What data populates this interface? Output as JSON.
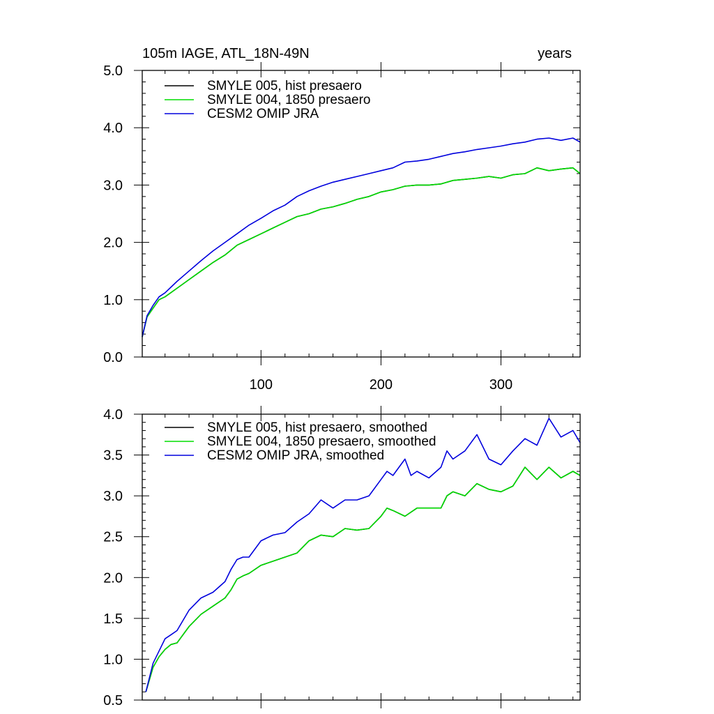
{
  "chart_data": [
    {
      "type": "line",
      "title_left": "105m IAGE, ATL_18N-49N",
      "title_right": "years",
      "xlabel": "",
      "ylabel": "",
      "xlim": [
        1,
        366
      ],
      "ylim": [
        0.0,
        5.0
      ],
      "yticks": [
        0.0,
        1.0,
        2.0,
        3.0,
        4.0,
        5.0
      ],
      "yticklabels": [
        "0.0",
        "1.0",
        "2.0",
        "3.0",
        "4.0",
        "5.0"
      ],
      "xticks": [
        100,
        200,
        300
      ],
      "xticklabels": [
        "100",
        "200",
        "300"
      ],
      "legend_position": "top-left",
      "series": [
        {
          "name": "SMYLE 005, hist presaero",
          "color": "#000000",
          "x": [
            1,
            5,
            10,
            15,
            20,
            30,
            40,
            50,
            60,
            70,
            80,
            90,
            100,
            110,
            120,
            130,
            140,
            150,
            160,
            170,
            180,
            190,
            200,
            210,
            220,
            230,
            240,
            250,
            260,
            270,
            280,
            290,
            300,
            310,
            320,
            330,
            340,
            350,
            360,
            366
          ],
          "y": [
            0.35,
            0.7,
            0.85,
            1.0,
            1.05,
            1.2,
            1.35,
            1.5,
            1.65,
            1.78,
            1.95,
            2.05,
            2.15,
            2.25,
            2.35,
            2.45,
            2.5,
            2.58,
            2.62,
            2.68,
            2.75,
            2.8,
            2.88,
            2.92,
            2.98,
            3.0,
            3.0,
            3.02,
            3.08,
            3.1,
            3.12,
            3.15,
            3.12,
            3.18,
            3.2,
            3.3,
            3.25,
            3.28,
            3.3,
            3.2
          ]
        },
        {
          "name": "SMYLE 004, 1850 presaero",
          "color": "#00dd00",
          "x": [
            1,
            5,
            10,
            15,
            20,
            30,
            40,
            50,
            60,
            70,
            80,
            90,
            100,
            110,
            120,
            130,
            140,
            150,
            160,
            170,
            180,
            190,
            200,
            210,
            220,
            230,
            240,
            250,
            260,
            270,
            280,
            290,
            300,
            310,
            320,
            330,
            340,
            350,
            360,
            366
          ],
          "y": [
            0.35,
            0.7,
            0.85,
            1.0,
            1.05,
            1.2,
            1.35,
            1.5,
            1.65,
            1.78,
            1.95,
            2.05,
            2.15,
            2.25,
            2.35,
            2.45,
            2.5,
            2.58,
            2.62,
            2.68,
            2.75,
            2.8,
            2.88,
            2.92,
            2.98,
            3.0,
            3.0,
            3.02,
            3.08,
            3.1,
            3.12,
            3.15,
            3.12,
            3.18,
            3.2,
            3.3,
            3.25,
            3.28,
            3.3,
            3.2
          ]
        },
        {
          "name": "CESM2 OMIP JRA",
          "color": "#0000dd",
          "x": [
            1,
            5,
            10,
            15,
            20,
            30,
            40,
            50,
            60,
            70,
            80,
            90,
            100,
            110,
            120,
            130,
            140,
            150,
            160,
            170,
            180,
            190,
            200,
            210,
            220,
            230,
            240,
            250,
            260,
            270,
            280,
            290,
            300,
            310,
            320,
            330,
            340,
            350,
            360,
            366
          ],
          "y": [
            0.35,
            0.72,
            0.9,
            1.05,
            1.12,
            1.32,
            1.5,
            1.68,
            1.85,
            2.0,
            2.15,
            2.3,
            2.42,
            2.55,
            2.65,
            2.8,
            2.9,
            2.98,
            3.05,
            3.1,
            3.15,
            3.2,
            3.25,
            3.3,
            3.4,
            3.42,
            3.45,
            3.5,
            3.55,
            3.58,
            3.62,
            3.65,
            3.68,
            3.72,
            3.75,
            3.8,
            3.82,
            3.78,
            3.82,
            3.75
          ]
        }
      ]
    },
    {
      "type": "line",
      "xlim": [
        1,
        366
      ],
      "ylim": [
        0.5,
        4.0
      ],
      "yticks": [
        0.5,
        1.0,
        1.5,
        2.0,
        2.5,
        3.0,
        3.5,
        4.0
      ],
      "yticklabels": [
        "0.5",
        "1.0",
        "1.5",
        "2.0",
        "2.5",
        "3.0",
        "3.5",
        "4.0"
      ],
      "xticks": [
        100,
        200,
        300
      ],
      "legend_position": "top-left",
      "series": [
        {
          "name": "SMYLE 005, hist presaero, smoothed",
          "color": "#000000",
          "x": [
            4,
            10,
            15,
            20,
            25,
            30,
            40,
            50,
            60,
            70,
            75,
            80,
            85,
            90,
            100,
            110,
            120,
            130,
            140,
            150,
            160,
            170,
            180,
            190,
            200,
            205,
            210,
            220,
            230,
            240,
            250,
            255,
            260,
            270,
            280,
            290,
            300,
            310,
            320,
            330,
            340,
            350,
            360,
            366
          ],
          "y": [
            0.6,
            0.9,
            1.03,
            1.12,
            1.18,
            1.2,
            1.4,
            1.55,
            1.65,
            1.75,
            1.85,
            1.98,
            2.02,
            2.05,
            2.15,
            2.2,
            2.25,
            2.3,
            2.45,
            2.52,
            2.5,
            2.6,
            2.58,
            2.6,
            2.75,
            2.85,
            2.82,
            2.75,
            2.85,
            2.85,
            2.85,
            3.0,
            3.05,
            3.0,
            3.15,
            3.08,
            3.05,
            3.12,
            3.35,
            3.2,
            3.35,
            3.22,
            3.3,
            3.25
          ]
        },
        {
          "name": "SMYLE 004, 1850 presaero, smoothed",
          "color": "#00dd00",
          "x": [
            4,
            10,
            15,
            20,
            25,
            30,
            40,
            50,
            60,
            70,
            75,
            80,
            85,
            90,
            100,
            110,
            120,
            130,
            140,
            150,
            160,
            170,
            180,
            190,
            200,
            205,
            210,
            220,
            230,
            240,
            250,
            255,
            260,
            270,
            280,
            290,
            300,
            310,
            320,
            330,
            340,
            350,
            360,
            366
          ],
          "y": [
            0.6,
            0.9,
            1.03,
            1.12,
            1.18,
            1.2,
            1.4,
            1.55,
            1.65,
            1.75,
            1.85,
            1.98,
            2.02,
            2.05,
            2.15,
            2.2,
            2.25,
            2.3,
            2.45,
            2.52,
            2.5,
            2.6,
            2.58,
            2.6,
            2.75,
            2.85,
            2.82,
            2.75,
            2.85,
            2.85,
            2.85,
            3.0,
            3.05,
            3.0,
            3.15,
            3.08,
            3.05,
            3.12,
            3.35,
            3.2,
            3.35,
            3.22,
            3.3,
            3.25
          ]
        },
        {
          "name": "CESM2 OMIP JRA, smoothed",
          "color": "#0000dd",
          "x": [
            4,
            10,
            15,
            20,
            25,
            30,
            40,
            50,
            60,
            70,
            75,
            80,
            85,
            90,
            100,
            110,
            120,
            130,
            140,
            150,
            160,
            170,
            180,
            190,
            200,
            205,
            210,
            220,
            225,
            230,
            240,
            250,
            255,
            260,
            270,
            280,
            290,
            300,
            310,
            320,
            330,
            340,
            350,
            360,
            366
          ],
          "y": [
            0.6,
            0.95,
            1.1,
            1.25,
            1.3,
            1.35,
            1.6,
            1.75,
            1.82,
            1.95,
            2.1,
            2.22,
            2.25,
            2.25,
            2.45,
            2.52,
            2.55,
            2.68,
            2.78,
            2.95,
            2.85,
            2.95,
            2.95,
            3.0,
            3.2,
            3.3,
            3.25,
            3.45,
            3.25,
            3.3,
            3.22,
            3.35,
            3.55,
            3.45,
            3.55,
            3.75,
            3.45,
            3.38,
            3.55,
            3.7,
            3.62,
            3.95,
            3.72,
            3.8,
            3.65
          ]
        }
      ]
    }
  ]
}
